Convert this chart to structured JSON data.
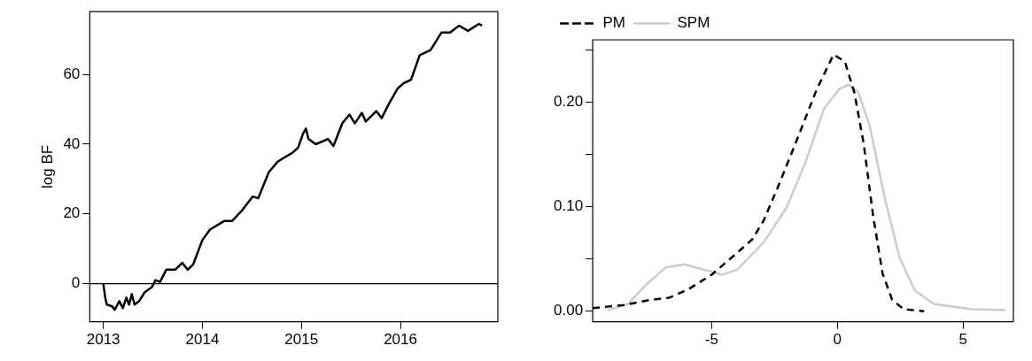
{
  "chart_data": [
    {
      "type": "line",
      "ylabel": "log BF",
      "xlim": [
        "2012-11-12",
        "2016-12-25"
      ],
      "xticks": [
        "2013",
        "2014",
        "2015",
        "2016"
      ],
      "ylim": [
        -10.9,
        78
      ],
      "yticks": [
        0,
        20,
        40,
        60
      ],
      "grid": false,
      "legend": false,
      "marker": "none",
      "line_style": "solid",
      "ref_lines": [
        {
          "axis": "y",
          "value": 0,
          "label": null,
          "color": "#000000"
        }
      ],
      "x": [
        "2013-01-01",
        "2013-01-08",
        "2013-01-14",
        "2013-02-03",
        "2013-02-12",
        "2013-03-01",
        "2013-03-14",
        "2013-03-27",
        "2013-04-06",
        "2013-04-16",
        "2013-04-26",
        "2013-05-13",
        "2013-06-02",
        "2013-06-29",
        "2013-07-12",
        "2013-07-29",
        "2013-08-21",
        "2013-09-23",
        "2013-10-19",
        "2013-11-08",
        "2013-11-28",
        "2014-01-01",
        "2014-01-29",
        "2014-03-23",
        "2014-04-21",
        "2014-05-27",
        "2014-07-06",
        "2014-07-26",
        "2014-09-03",
        "2014-10-06",
        "2014-10-26",
        "2014-11-28",
        "2014-12-20",
        "2015-01-07",
        "2015-01-18",
        "2015-01-27",
        "2015-02-23",
        "2015-04-09",
        "2015-04-29",
        "2015-06-01",
        "2015-06-27",
        "2015-07-17",
        "2015-08-12",
        "2015-08-26",
        "2015-10-04",
        "2015-10-24",
        "2015-11-19",
        "2015-12-22",
        "2016-01-13",
        "2016-02-09",
        "2016-03-12",
        "2016-04-21",
        "2016-05-31",
        "2016-07-02",
        "2016-08-04",
        "2016-09-06",
        "2016-10-16",
        "2016-10-28"
      ],
      "series": [
        {
          "color": "#000000",
          "values": [
            0,
            -4,
            -6,
            -6.5,
            -7.5,
            -5,
            -7,
            -4,
            -6,
            -3,
            -6,
            -5,
            -2.5,
            -1,
            1,
            0.5,
            4,
            4,
            6,
            4,
            5.5,
            12.5,
            15.5,
            18,
            18,
            21,
            25,
            24.5,
            32,
            35,
            36,
            37.5,
            39,
            43,
            44.5,
            41.5,
            40,
            41.5,
            39.5,
            46,
            48.5,
            46,
            49,
            46.5,
            49.5,
            47.5,
            51.5,
            56,
            57.5,
            58.5,
            65.5,
            67,
            72,
            72,
            74,
            72.5,
            74.5,
            74
          ]
        }
      ]
    },
    {
      "type": "line",
      "xlim": [
        -9.73,
        7.0
      ],
      "xticks": [
        -5,
        0,
        5
      ],
      "ylim": [
        -0.01,
        0.26
      ],
      "yticks": [
        {
          "value": 0,
          "label": "0.00"
        },
        {
          "value": 0.05,
          "label": null
        },
        {
          "value": 0.1,
          "label": "0.10"
        },
        {
          "value": 0.15,
          "label": null
        },
        {
          "value": 0.2,
          "label": "0.20"
        },
        {
          "value": 0.25,
          "label": null
        }
      ],
      "grid": false,
      "legend": "top left",
      "marker": "none",
      "series": [
        {
          "name": "PM",
          "color": "#000000",
          "line_style": "dashed",
          "x": [
            -9.73,
            -8.48,
            -7.43,
            -6.68,
            -5.93,
            -5,
            -4.13,
            -3.38,
            -2.93,
            -2.33,
            -1.58,
            -0.83,
            -0.15,
            0.3,
            0.68,
            1.05,
            1.43,
            1.8,
            2.18,
            2.63,
            3.45
          ],
          "values": [
            0.003,
            0.006,
            0.011,
            0.013,
            0.021,
            0.035,
            0.053,
            0.069,
            0.087,
            0.121,
            0.166,
            0.212,
            0.246,
            0.239,
            0.209,
            0.16,
            0.09,
            0.036,
            0.011,
            0.002,
            0
          ]
        },
        {
          "name": "SPM",
          "color": "#cccccc",
          "line_style": "solid",
          "x": [
            -9.13,
            -8.33,
            -7.58,
            -6.83,
            -6.08,
            -5.33,
            -4.58,
            -3.98,
            -2.93,
            -2.03,
            -1.28,
            -0.53,
            0.08,
            0.45,
            0.83,
            1.28,
            1.88,
            2.48,
            3.08,
            3.83,
            5.33,
            6.68
          ],
          "values": [
            0.001,
            0.007,
            0.026,
            0.042,
            0.045,
            0.04,
            0.035,
            0.04,
            0.066,
            0.099,
            0.142,
            0.194,
            0.213,
            0.217,
            0.21,
            0.178,
            0.109,
            0.051,
            0.02,
            0.007,
            0.002,
            0.001
          ]
        }
      ]
    }
  ]
}
